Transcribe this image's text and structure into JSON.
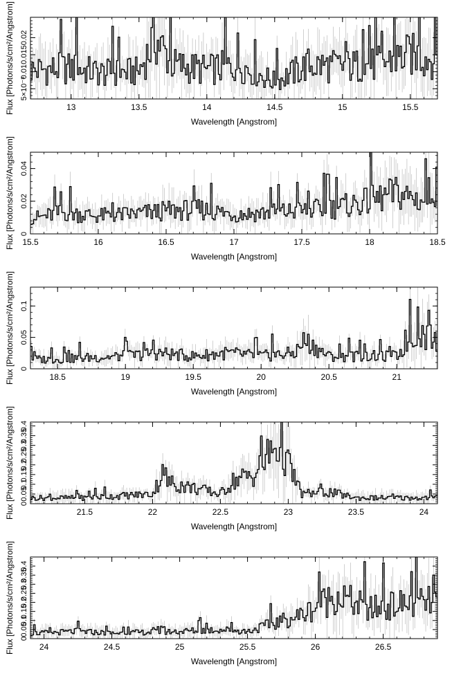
{
  "chart_data": [
    {
      "type": "line",
      "xlabel": "Wavelength [Angstrom]",
      "ylabel": "Flux [Photons/s/cm²/Angstrom]",
      "xlim": [
        12.7,
        15.7
      ],
      "ylim": [
        0.002,
        0.026
      ],
      "xticks": [
        13,
        13.5,
        14,
        14.5,
        15,
        15.5
      ],
      "xtick_labels": [
        "13",
        "13.5",
        "14",
        "14.5",
        "15",
        "15.5"
      ],
      "yticks": [
        0.005,
        0.01,
        0.015,
        0.02
      ],
      "ytick_labels": [
        "5×10⁻³",
        "0.01",
        "0.015",
        "0.02"
      ],
      "colors": {
        "data": "#000000",
        "error": "#bbbbbb"
      },
      "series": [
        {
          "x": [
            12.75,
            13.0,
            13.25,
            13.5,
            13.62,
            13.75,
            14.0,
            14.25,
            14.5,
            14.75,
            15.0,
            15.25,
            15.5,
            15.65
          ],
          "y": [
            0.0105,
            0.011,
            0.0095,
            0.01,
            0.02,
            0.012,
            0.0105,
            0.012,
            0.007,
            0.012,
            0.0115,
            0.012,
            0.015,
            0.014
          ]
        }
      ]
    },
    {
      "type": "line",
      "xlabel": "Wavelength [Angstrom]",
      "ylabel": "Flux [Photons/s/cm²/Angstrom]",
      "xlim": [
        15.5,
        18.5
      ],
      "ylim": [
        0.0,
        0.05
      ],
      "xticks": [
        15.5,
        16,
        16.5,
        17,
        17.5,
        18,
        18.5
      ],
      "xtick_labels": [
        "15.5",
        "16",
        "16.5",
        "17",
        "17.5",
        "18",
        "18.5"
      ],
      "yticks": [
        0,
        0.02,
        0.04
      ],
      "ytick_labels": [
        "0",
        "0.02",
        "0.04"
      ],
      "colors": {
        "data": "#000000",
        "error": "#bbbbbb"
      },
      "series": [
        {
          "x": [
            15.55,
            15.75,
            16.0,
            16.25,
            16.5,
            16.75,
            17.0,
            17.25,
            17.5,
            17.75,
            18.0,
            18.2,
            18.4,
            18.48
          ],
          "y": [
            0.01,
            0.013,
            0.011,
            0.012,
            0.014,
            0.015,
            0.012,
            0.013,
            0.014,
            0.016,
            0.02,
            0.025,
            0.02,
            0.03
          ]
        }
      ]
    },
    {
      "type": "line",
      "xlabel": "Wavelength [Angstrom]",
      "ylabel": "Flux [Photons/s/cm²/Angstrom]",
      "xlim": [
        18.3,
        21.3
      ],
      "ylim": [
        0.0,
        0.13
      ],
      "xticks": [
        18.5,
        19,
        19.5,
        20,
        20.5,
        21
      ],
      "xtick_labels": [
        "18.5",
        "19",
        "19.5",
        "20",
        "20.5",
        "21"
      ],
      "yticks": [
        0,
        0.05,
        0.1
      ],
      "ytick_labels": [
        "0",
        "0.05",
        "0.1"
      ],
      "colors": {
        "data": "#000000",
        "error": "#bbbbbb"
      },
      "series": [
        {
          "x": [
            18.35,
            18.5,
            18.75,
            19.0,
            19.25,
            19.5,
            19.75,
            20.0,
            20.25,
            20.32,
            20.5,
            20.75,
            21.0,
            21.15,
            21.28
          ],
          "y": [
            0.015,
            0.015,
            0.018,
            0.02,
            0.025,
            0.02,
            0.025,
            0.02,
            0.025,
            0.045,
            0.02,
            0.02,
            0.02,
            0.06,
            0.045
          ]
        }
      ]
    },
    {
      "type": "line",
      "xlabel": "Wavelength [Angstrom]",
      "ylabel": "Flux [Photons/s/cm²/Angstrom]",
      "xlim": [
        21.1,
        24.1
      ],
      "ylim": [
        0.0,
        0.42
      ],
      "xticks": [
        21.5,
        22,
        22.5,
        23,
        23.5,
        24
      ],
      "xtick_labels": [
        "21.5",
        "22",
        "22.5",
        "23",
        "23.5",
        "24"
      ],
      "yticks": [
        0,
        0.05,
        0.1,
        0.15,
        0.2,
        0.25,
        0.3,
        0.35,
        0.4
      ],
      "ytick_labels": [
        "0",
        "0.05",
        "0.1",
        "0.15",
        "0.2",
        "0.25",
        "0.3",
        "0.35",
        "0.4"
      ],
      "colors": {
        "data": "#000000",
        "error": "#bbbbbb"
      },
      "series": [
        {
          "x": [
            21.15,
            21.5,
            22.0,
            22.05,
            22.5,
            22.6,
            22.75,
            22.9,
            22.95,
            23.0,
            23.1,
            23.3,
            23.5,
            23.8,
            24.05
          ],
          "y": [
            0.03,
            0.03,
            0.05,
            0.12,
            0.05,
            0.12,
            0.15,
            0.29,
            0.3,
            0.2,
            0.05,
            0.06,
            0.03,
            0.03,
            0.03
          ]
        }
      ]
    },
    {
      "type": "line",
      "xlabel": "Wavelength [Angstrom]",
      "ylabel": "Flux [Photons/s/cm²/Angstrom]",
      "xlim": [
        23.9,
        26.9
      ],
      "ylim": [
        0.0,
        0.45
      ],
      "xticks": [
        24,
        24.5,
        25,
        25.5,
        26,
        26.5
      ],
      "xtick_labels": [
        "24",
        "24.5",
        "25",
        "25.5",
        "26",
        "26.5"
      ],
      "yticks": [
        0,
        0.05,
        0.1,
        0.15,
        0.2,
        0.25,
        0.3,
        0.35,
        0.4
      ],
      "ytick_labels": [
        "0",
        "0.05",
        "0.1",
        "0.15",
        "0.2",
        "0.25",
        "0.3",
        "0.35",
        "0.4"
      ],
      "colors": {
        "data": "#000000",
        "error": "#bbbbbb"
      },
      "series": [
        {
          "x": [
            23.95,
            24.25,
            24.5,
            25.0,
            25.3,
            25.5,
            25.9,
            26.15,
            26.4,
            26.55,
            26.65,
            26.85
          ],
          "y": [
            0.03,
            0.04,
            0.03,
            0.04,
            0.05,
            0.04,
            0.13,
            0.24,
            0.16,
            0.18,
            0.19,
            0.2
          ]
        }
      ]
    }
  ]
}
